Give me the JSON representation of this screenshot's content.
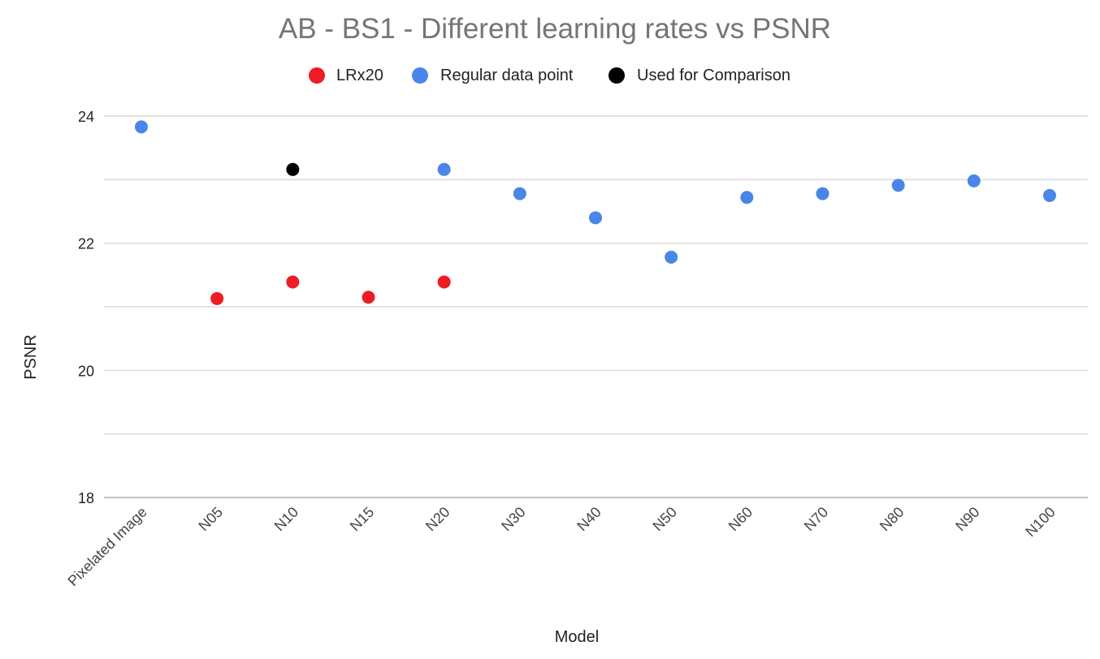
{
  "chart_data": {
    "type": "scatter",
    "title": "AB - BS1 - Different learning rates vs PSNR",
    "xlabel": "Model",
    "ylabel": "PSNR",
    "categories": [
      "Pixelated Image",
      "N05",
      "N10",
      "N15",
      "N20",
      "N30",
      "N40",
      "N50",
      "N60",
      "N70",
      "N80",
      "N90",
      "N100"
    ],
    "ylim": [
      18,
      24
    ],
    "yticks": [
      "24",
      "22",
      "20",
      "18"
    ],
    "grid": true,
    "legend_position": "top",
    "series": [
      {
        "name": "LRx20",
        "color": "#ee1c25",
        "points": [
          {
            "x": "N05",
            "y": 21.13
          },
          {
            "x": "N10",
            "y": 21.39
          },
          {
            "x": "N15",
            "y": 21.15
          },
          {
            "x": "N20",
            "y": 21.39
          }
        ]
      },
      {
        "name": "Regular data point",
        "color": "#4a86e8",
        "points": [
          {
            "x": "Pixelated Image",
            "y": 23.83
          },
          {
            "x": "N20",
            "y": 23.16
          },
          {
            "x": "N30",
            "y": 22.78
          },
          {
            "x": "N40",
            "y": 22.4
          },
          {
            "x": "N50",
            "y": 21.78
          },
          {
            "x": "N60",
            "y": 22.72
          },
          {
            "x": "N70",
            "y": 22.78
          },
          {
            "x": "N80",
            "y": 22.91
          },
          {
            "x": "N90",
            "y": 22.98
          },
          {
            "x": "N100",
            "y": 22.75
          }
        ]
      },
      {
        "name": "Used for Comparison",
        "color": "#000000",
        "points": [
          {
            "x": "N10",
            "y": 23.16
          }
        ]
      }
    ]
  }
}
